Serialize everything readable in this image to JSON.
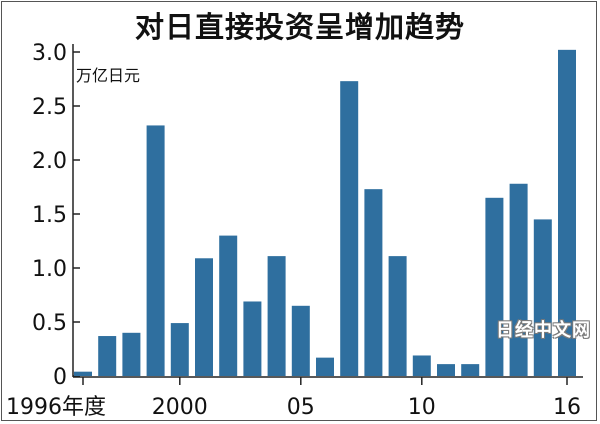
{
  "chart_data": {
    "type": "bar",
    "title": "对日直接投资呈增加趋势",
    "unit_label": "万亿日元",
    "xlabel": "",
    "ylabel": "",
    "years": [
      1996,
      1997,
      1998,
      1999,
      2000,
      2001,
      2002,
      2003,
      2004,
      2005,
      2006,
      2007,
      2008,
      2009,
      2010,
      2011,
      2012,
      2013,
      2014,
      2015,
      2016
    ],
    "values": [
      0.04,
      0.37,
      0.4,
      2.32,
      0.49,
      1.09,
      1.3,
      0.69,
      1.11,
      0.65,
      0.17,
      2.73,
      1.73,
      1.11,
      0.19,
      0.11,
      0.11,
      1.65,
      1.78,
      1.45,
      3.02
    ],
    "ylim": [
      0,
      3.0
    ],
    "y_ticks": [
      "0",
      "0.5",
      "1.0",
      "1.5",
      "2.0",
      "2.5",
      "3.0"
    ],
    "x_tick_labels": [
      {
        "year": 1996,
        "label": "1996年度"
      },
      {
        "year": 2000,
        "label": "2000"
      },
      {
        "year": 2005,
        "label": "05"
      },
      {
        "year": 2010,
        "label": "10"
      },
      {
        "year": 2016,
        "label": "16"
      }
    ],
    "bar_color": "#2f6f9f",
    "grid": false,
    "legend": "none"
  },
  "watermark": "日经中文网"
}
